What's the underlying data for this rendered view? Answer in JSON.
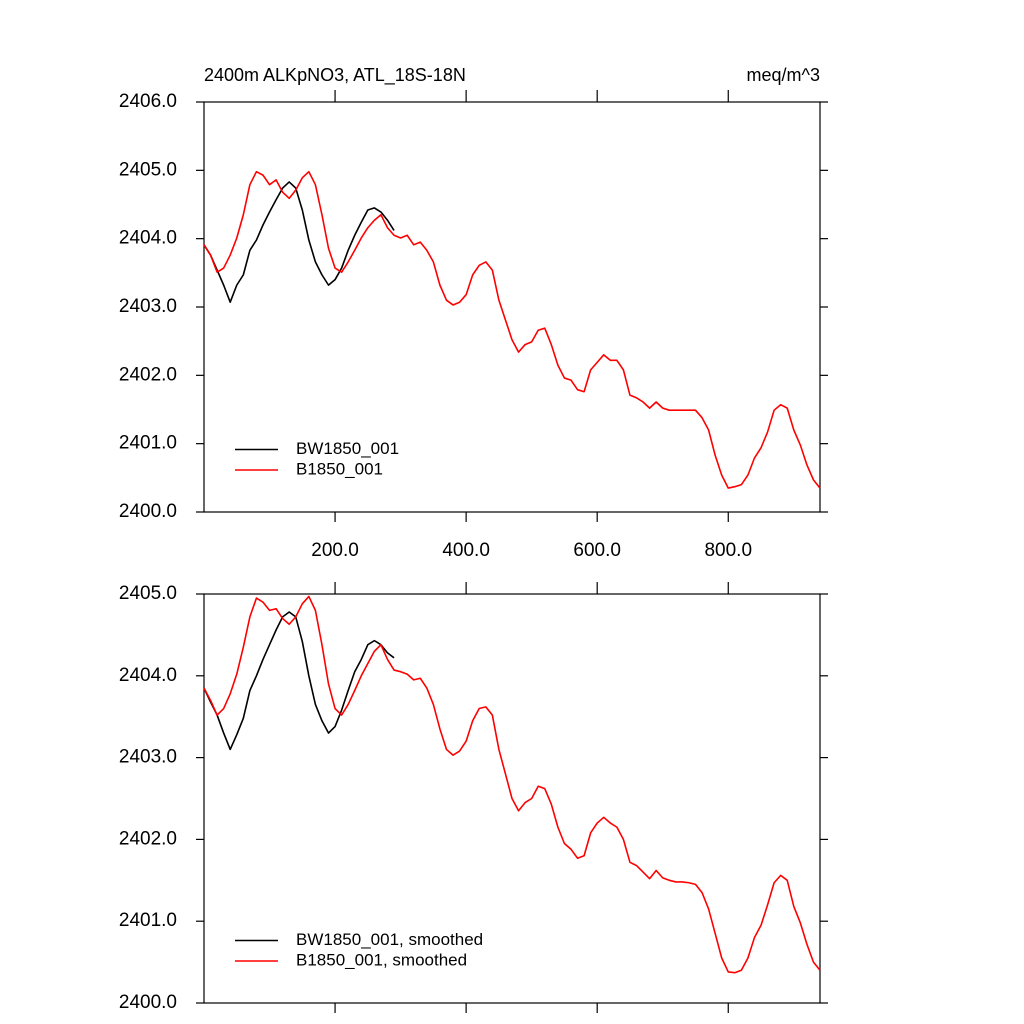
{
  "chart_data": [
    {
      "type": "line",
      "title": "2400m ALKpNO3, ATL_18S-18N",
      "units": "meq/m^3",
      "x": [
        0,
        10,
        20,
        30,
        40,
        50,
        60,
        70,
        80,
        90,
        100,
        110,
        120,
        130,
        140,
        150,
        160,
        170,
        180,
        190,
        200,
        210,
        220,
        230,
        240,
        250,
        260,
        270,
        280,
        290,
        300,
        310,
        320,
        330,
        340,
        350,
        360,
        370,
        380,
        390,
        400,
        410,
        420,
        430,
        440,
        450,
        460,
        470,
        480,
        490,
        500,
        510,
        520,
        530,
        540,
        550,
        560,
        570,
        580,
        590,
        600,
        610,
        620,
        630,
        640,
        650,
        660,
        670,
        680,
        690,
        700,
        710,
        720,
        730,
        740,
        750,
        760,
        770,
        780,
        790,
        800,
        810,
        820,
        830,
        840,
        850,
        860,
        870,
        880,
        890,
        900,
        910,
        920,
        930,
        940
      ],
      "series": [
        {
          "name": "BW1850_001",
          "color": "#000000",
          "values": [
            2403.91,
            2403.76,
            2403.54,
            2403.32,
            2403.07,
            2403.32,
            2403.47,
            2403.83,
            2403.98,
            2404.2,
            2404.39,
            2404.57,
            2404.74,
            2404.83,
            2404.74,
            2404.42,
            2403.98,
            2403.66,
            2403.47,
            2403.32,
            2403.4,
            2403.57,
            2403.83,
            2404.05,
            2404.24,
            2404.42,
            2404.45,
            2404.39,
            2404.27,
            2404.12,
            null,
            null,
            null,
            null,
            null,
            null,
            null,
            null,
            null,
            null,
            null,
            null,
            null,
            null,
            null,
            null,
            null,
            null,
            null,
            null,
            null,
            null,
            null,
            null,
            null,
            null,
            null,
            null,
            null,
            null,
            null,
            null,
            null,
            null,
            null,
            null,
            null,
            null,
            null,
            null,
            null,
            null,
            null,
            null,
            null,
            null,
            null,
            null,
            null,
            null,
            null,
            null,
            null,
            null,
            null,
            null,
            null,
            null,
            null,
            null,
            null,
            null,
            null,
            null,
            null
          ]
        },
        {
          "name": "B1850_001",
          "color": "#ff0000",
          "values": [
            2403.91,
            2403.76,
            2403.51,
            2403.57,
            2403.76,
            2404.01,
            2404.35,
            2404.79,
            2404.98,
            2404.93,
            2404.79,
            2404.86,
            2404.68,
            2404.59,
            2404.71,
            2404.89,
            2404.98,
            2404.79,
            2404.35,
            2403.86,
            2403.57,
            2403.51,
            2403.66,
            2403.83,
            2404.01,
            2404.16,
            2404.27,
            2404.35,
            2404.16,
            2404.05,
            2404.01,
            2404.05,
            2403.91,
            2403.95,
            2403.83,
            2403.66,
            2403.32,
            2403.1,
            2403.03,
            2403.07,
            2403.18,
            2403.47,
            2403.61,
            2403.66,
            2403.54,
            2403.1,
            2402.81,
            2402.52,
            2402.34,
            2402.45,
            2402.49,
            2402.66,
            2402.69,
            2402.45,
            2402.15,
            2401.96,
            2401.93,
            2401.79,
            2401.76,
            2402.08,
            2402.19,
            2402.3,
            2402.22,
            2402.22,
            2402.08,
            2401.71,
            2401.67,
            2401.61,
            2401.52,
            2401.61,
            2401.52,
            2401.49,
            2401.49,
            2401.49,
            2401.49,
            2401.49,
            2401.38,
            2401.2,
            2400.83,
            2400.54,
            2400.35,
            2400.37,
            2400.4,
            2400.54,
            2400.79,
            2400.94,
            2401.17,
            2401.49,
            2401.57,
            2401.52,
            2401.2,
            2400.98,
            2400.69,
            2400.47,
            2400.35
          ]
        }
      ],
      "xlim": [
        0,
        940
      ],
      "xticks": [
        {
          "value": 200,
          "label": "200.0"
        },
        {
          "value": 400,
          "label": "400.0"
        },
        {
          "value": 600,
          "label": "600.0"
        },
        {
          "value": 800,
          "label": "800.0"
        }
      ],
      "ylim": [
        2400,
        2406
      ],
      "yticks": [
        {
          "value": 2400,
          "label": "2400.0"
        },
        {
          "value": 2401,
          "label": "2401.0"
        },
        {
          "value": 2402,
          "label": "2402.0"
        },
        {
          "value": 2403,
          "label": "2403.0"
        },
        {
          "value": 2404,
          "label": "2404.0"
        },
        {
          "value": 2405,
          "label": "2405.0"
        },
        {
          "value": 2406,
          "label": "2406.0"
        }
      ],
      "xtick_labels": true,
      "legend": "lower left",
      "grid": false
    },
    {
      "type": "line",
      "x": [
        0,
        10,
        20,
        30,
        40,
        50,
        60,
        70,
        80,
        90,
        100,
        110,
        120,
        130,
        140,
        150,
        160,
        170,
        180,
        190,
        200,
        210,
        220,
        230,
        240,
        250,
        260,
        270,
        280,
        290,
        300,
        310,
        320,
        330,
        340,
        350,
        360,
        370,
        380,
        390,
        400,
        410,
        420,
        430,
        440,
        450,
        460,
        470,
        480,
        490,
        500,
        510,
        520,
        530,
        540,
        550,
        560,
        570,
        580,
        590,
        600,
        610,
        620,
        630,
        640,
        650,
        660,
        670,
        680,
        690,
        700,
        710,
        720,
        730,
        740,
        750,
        760,
        770,
        780,
        790,
        800,
        810,
        820,
        830,
        840,
        850,
        860,
        870,
        880,
        890,
        900,
        910,
        920,
        930,
        940
      ],
      "series": [
        {
          "name": "BW1850_001, smoothed",
          "color": "#000000",
          "values": [
            2403.85,
            2403.68,
            2403.52,
            2403.3,
            2403.1,
            2403.28,
            2403.48,
            2403.82,
            2404.0,
            2404.2,
            2404.38,
            2404.56,
            2404.72,
            2404.78,
            2404.72,
            2404.42,
            2404.0,
            2403.65,
            2403.45,
            2403.3,
            2403.38,
            2403.58,
            2403.82,
            2404.05,
            2404.2,
            2404.38,
            2404.43,
            2404.38,
            2404.28,
            2404.22,
            null,
            null,
            null,
            null,
            null,
            null,
            null,
            null,
            null,
            null,
            null,
            null,
            null,
            null,
            null,
            null,
            null,
            null,
            null,
            null,
            null,
            null,
            null,
            null,
            null,
            null,
            null,
            null,
            null,
            null,
            null,
            null,
            null,
            null,
            null,
            null,
            null,
            null,
            null,
            null,
            null,
            null,
            null,
            null,
            null,
            null,
            null,
            null,
            null,
            null,
            null,
            null,
            null,
            null,
            null,
            null,
            null,
            null,
            null,
            null,
            null,
            null,
            null,
            null,
            null
          ]
        },
        {
          "name": "B1850_001, smoothed",
          "color": "#ff0000",
          "values": [
            2403.85,
            2403.7,
            2403.52,
            2403.6,
            2403.78,
            2404.02,
            2404.35,
            2404.72,
            2404.95,
            2404.9,
            2404.8,
            2404.82,
            2404.7,
            2404.63,
            2404.72,
            2404.88,
            2404.97,
            2404.8,
            2404.38,
            2403.9,
            2403.6,
            2403.52,
            2403.65,
            2403.82,
            2404.0,
            2404.15,
            2404.3,
            2404.38,
            2404.2,
            2404.07,
            2404.05,
            2404.02,
            2403.95,
            2403.97,
            2403.85,
            2403.65,
            2403.35,
            2403.1,
            2403.03,
            2403.08,
            2403.2,
            2403.45,
            2403.6,
            2403.62,
            2403.52,
            2403.1,
            2402.8,
            2402.5,
            2402.35,
            2402.45,
            2402.5,
            2402.65,
            2402.62,
            2402.43,
            2402.15,
            2401.95,
            2401.88,
            2401.77,
            2401.8,
            2402.08,
            2402.2,
            2402.27,
            2402.2,
            2402.15,
            2402.0,
            2401.72,
            2401.68,
            2401.6,
            2401.52,
            2401.62,
            2401.53,
            2401.5,
            2401.48,
            2401.48,
            2401.47,
            2401.45,
            2401.35,
            2401.15,
            2400.85,
            2400.55,
            2400.38,
            2400.37,
            2400.4,
            2400.55,
            2400.8,
            2400.95,
            2401.2,
            2401.47,
            2401.56,
            2401.5,
            2401.18,
            2400.98,
            2400.72,
            2400.5,
            2400.4
          ]
        }
      ],
      "xlim": [
        0,
        940
      ],
      "xticks": [
        200,
        400,
        600,
        800
      ],
      "ylim": [
        2400,
        2405
      ],
      "yticks": [
        {
          "value": 2400,
          "label": "2400.0"
        },
        {
          "value": 2401,
          "label": "2401.0"
        },
        {
          "value": 2402,
          "label": "2402.0"
        },
        {
          "value": 2403,
          "label": "2403.0"
        },
        {
          "value": 2404,
          "label": "2404.0"
        },
        {
          "value": 2405,
          "label": "2405.0"
        }
      ],
      "xtick_labels": false,
      "legend": "lower left",
      "grid": false
    }
  ]
}
